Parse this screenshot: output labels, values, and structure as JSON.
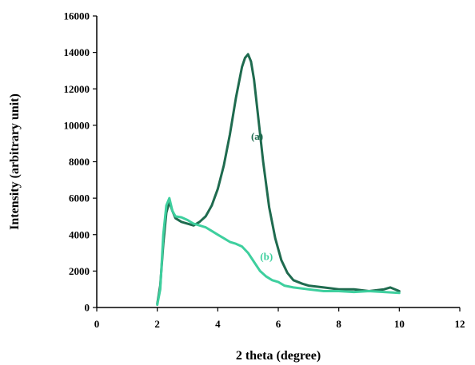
{
  "chart_data": {
    "type": "line",
    "title": "",
    "xlabel": "2 theta (degree)",
    "ylabel": "Intensity (arbitrary unit)",
    "xlim": [
      0,
      12
    ],
    "ylim": [
      0,
      16000
    ],
    "x_ticks": [
      0,
      2,
      4,
      6,
      8,
      10,
      12
    ],
    "y_ticks": [
      0,
      2000,
      4000,
      6000,
      8000,
      10000,
      12000,
      14000,
      16000
    ],
    "grid": false,
    "legend": "none",
    "series": [
      {
        "name": "(a)",
        "color": "#1f6b4f",
        "label_at": [
          5.1,
          9200
        ],
        "x": [
          2.0,
          2.1,
          2.2,
          2.3,
          2.4,
          2.5,
          2.6,
          2.8,
          3.0,
          3.2,
          3.4,
          3.6,
          3.8,
          4.0,
          4.2,
          4.4,
          4.6,
          4.8,
          4.9,
          5.0,
          5.1,
          5.2,
          5.3,
          5.5,
          5.7,
          5.9,
          6.1,
          6.3,
          6.5,
          6.8,
          7.0,
          7.5,
          8.0,
          8.5,
          9.0,
          9.5,
          9.7,
          10.0
        ],
        "values": [
          200,
          1200,
          3500,
          5200,
          5800,
          5300,
          4900,
          4700,
          4600,
          4500,
          4700,
          5000,
          5600,
          6500,
          7800,
          9500,
          11500,
          13200,
          13700,
          13900,
          13500,
          12500,
          11000,
          8000,
          5500,
          3800,
          2600,
          1900,
          1500,
          1300,
          1200,
          1100,
          1000,
          1000,
          900,
          1000,
          1100,
          900
        ]
      },
      {
        "name": "(b)",
        "color": "#3ecf9e",
        "label_at": [
          5.4,
          2600
        ],
        "x": [
          2.0,
          2.1,
          2.2,
          2.3,
          2.4,
          2.5,
          2.6,
          2.8,
          3.0,
          3.2,
          3.4,
          3.6,
          3.8,
          4.0,
          4.2,
          4.4,
          4.6,
          4.8,
          5.0,
          5.2,
          5.4,
          5.6,
          5.8,
          6.0,
          6.2,
          6.5,
          7.0,
          7.5,
          8.0,
          8.5,
          9.0,
          9.5,
          10.0
        ],
        "values": [
          150,
          1000,
          4000,
          5600,
          6000,
          5300,
          5000,
          4950,
          4800,
          4600,
          4500,
          4400,
          4200,
          4000,
          3800,
          3600,
          3500,
          3350,
          3000,
          2500,
          2000,
          1700,
          1500,
          1400,
          1200,
          1100,
          1000,
          900,
          900,
          850,
          900,
          850,
          800
        ]
      }
    ]
  }
}
